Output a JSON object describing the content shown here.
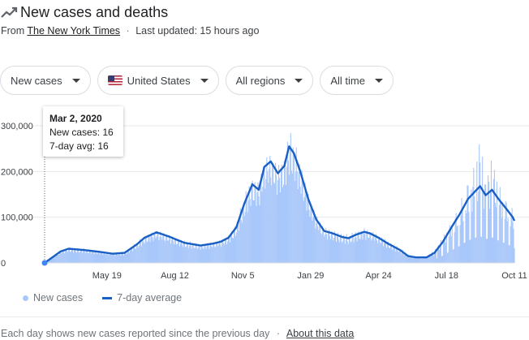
{
  "header": {
    "title": "New cases and deaths",
    "icon": "trending-icon"
  },
  "source": {
    "prefix": "From",
    "link": "The New York Times",
    "updated": "Last updated: 15 hours ago"
  },
  "controls": {
    "metric": "New cases",
    "country": "United States",
    "region": "All regions",
    "time": "All time"
  },
  "tooltip": {
    "date": "Mar 2, 2020",
    "new_cases": "New cases: 16",
    "avg": "7-day avg: 16"
  },
  "legend": {
    "bars": "New cases",
    "line": "7-day average"
  },
  "footer": {
    "text": "Each day shows new cases reported since the previous day",
    "link": "About this data"
  },
  "colors": {
    "bars": "#a8c7fa",
    "line": "#1a5fc4",
    "grid": "#e8eaed"
  },
  "chart_data": {
    "type": "bar",
    "title": "",
    "xlabel": "",
    "ylabel": "",
    "ylim": [
      0,
      300000
    ],
    "yticks": [
      {
        "value": 300000,
        "label": "300,000"
      },
      {
        "value": 200000,
        "label": "200,000"
      },
      {
        "value": 100000,
        "label": "100,000"
      },
      {
        "value": 0,
        "label": "0"
      }
    ],
    "xticks": [
      {
        "label": "May 19",
        "day": 78
      },
      {
        "label": "Aug 12",
        "day": 163
      },
      {
        "label": "Nov 5",
        "day": 248
      },
      {
        "label": "Jan 29",
        "day": 333
      },
      {
        "label": "Apr 24",
        "day": 418
      },
      {
        "label": "Jul 18",
        "day": 503
      },
      {
        "label": "Oct 11",
        "day": 588
      }
    ],
    "series": [
      {
        "name": "7-day average",
        "points": [
          [
            0,
            16
          ],
          [
            20,
            25000
          ],
          [
            30,
            31000
          ],
          [
            50,
            28000
          ],
          [
            70,
            24000
          ],
          [
            85,
            20000
          ],
          [
            100,
            22000
          ],
          [
            115,
            40000
          ],
          [
            125,
            55000
          ],
          [
            140,
            67000
          ],
          [
            155,
            58000
          ],
          [
            175,
            44000
          ],
          [
            195,
            38000
          ],
          [
            210,
            42000
          ],
          [
            220,
            46000
          ],
          [
            230,
            55000
          ],
          [
            240,
            78000
          ],
          [
            250,
            130000
          ],
          [
            260,
            172000
          ],
          [
            268,
            160000
          ],
          [
            275,
            210000
          ],
          [
            283,
            222000
          ],
          [
            292,
            196000
          ],
          [
            300,
            212000
          ],
          [
            306,
            255000
          ],
          [
            312,
            240000
          ],
          [
            320,
            200000
          ],
          [
            330,
            140000
          ],
          [
            340,
            95000
          ],
          [
            350,
            70000
          ],
          [
            360,
            65000
          ],
          [
            372,
            57000
          ],
          [
            380,
            54000
          ],
          [
            390,
            62000
          ],
          [
            400,
            68000
          ],
          [
            408,
            64000
          ],
          [
            418,
            55000
          ],
          [
            430,
            42000
          ],
          [
            445,
            28000
          ],
          [
            455,
            15000
          ],
          [
            465,
            12000
          ],
          [
            478,
            12000
          ],
          [
            488,
            22000
          ],
          [
            498,
            45000
          ],
          [
            510,
            80000
          ],
          [
            520,
            108000
          ],
          [
            530,
            140000
          ],
          [
            538,
            155000
          ],
          [
            545,
            168000
          ],
          [
            552,
            148000
          ],
          [
            560,
            160000
          ],
          [
            568,
            140000
          ],
          [
            578,
            118000
          ],
          [
            586,
            100000
          ],
          [
            588,
            92000
          ]
        ]
      }
    ],
    "new_cases_daily_envelope": [
      [
        0,
        16
      ],
      [
        20,
        28000
      ],
      [
        30,
        34000
      ],
      [
        50,
        32000
      ],
      [
        70,
        27000
      ],
      [
        85,
        24000
      ],
      [
        100,
        26000
      ],
      [
        115,
        46000
      ],
      [
        125,
        62000
      ],
      [
        140,
        76000
      ],
      [
        155,
        65000
      ],
      [
        175,
        50000
      ],
      [
        195,
        43000
      ],
      [
        210,
        48000
      ],
      [
        220,
        53000
      ],
      [
        230,
        62000
      ],
      [
        240,
        90000
      ],
      [
        250,
        150000
      ],
      [
        260,
        195000
      ],
      [
        268,
        185000
      ],
      [
        275,
        240000
      ],
      [
        283,
        250000
      ],
      [
        292,
        225000
      ],
      [
        300,
        240000
      ],
      [
        306,
        300000
      ],
      [
        312,
        270000
      ],
      [
        320,
        225000
      ],
      [
        330,
        160000
      ],
      [
        340,
        110000
      ],
      [
        350,
        82000
      ],
      [
        360,
        75000
      ],
      [
        372,
        66000
      ],
      [
        380,
        62000
      ],
      [
        390,
        72000
      ],
      [
        400,
        80000
      ],
      [
        408,
        75000
      ],
      [
        418,
        64000
      ],
      [
        430,
        50000
      ],
      [
        445,
        33000
      ],
      [
        455,
        20000
      ],
      [
        465,
        15000
      ],
      [
        478,
        16000
      ],
      [
        488,
        30000
      ],
      [
        498,
        60000
      ],
      [
        510,
        100000
      ],
      [
        520,
        140000
      ],
      [
        530,
        200000
      ],
      [
        538,
        230000
      ],
      [
        545,
        300000
      ],
      [
        552,
        190000
      ],
      [
        560,
        250000
      ],
      [
        568,
        185000
      ],
      [
        578,
        150000
      ],
      [
        586,
        125000
      ],
      [
        588,
        115000
      ]
    ],
    "highlight_point": {
      "day": 0,
      "value": 16
    }
  }
}
